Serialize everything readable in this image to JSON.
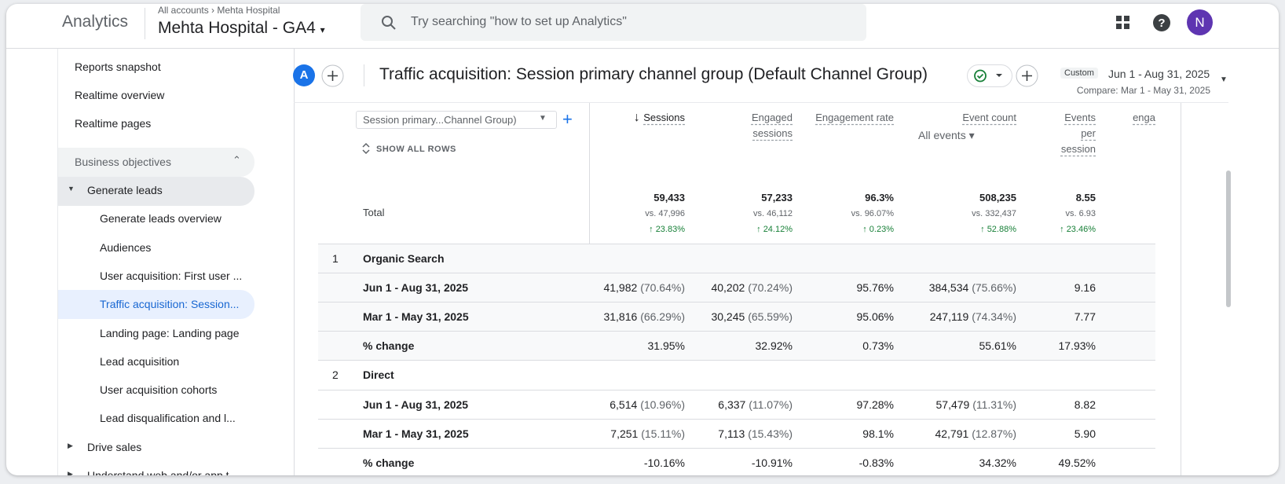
{
  "header": {
    "brand": "Analytics",
    "breadcrumb": [
      "All accounts",
      "Mehta Hospital"
    ],
    "property": "Mehta Hospital - GA4",
    "search_placeholder": "Try searching \"how to set up Analytics\"",
    "avatar": "N"
  },
  "sidebar": {
    "top": [
      "Reports snapshot",
      "Realtime overview",
      "Realtime pages"
    ],
    "section": {
      "title": "Business objectives",
      "groups": [
        {
          "label": "Generate leads",
          "items": [
            "Generate leads overview",
            "Audiences",
            "User acquisition: First user ...",
            "Traffic acquisition: Session...",
            "Landing page: Landing page",
            "Lead acquisition",
            "User acquisition cohorts",
            "Lead disqualification and l..."
          ]
        },
        {
          "label": "Drive sales"
        },
        {
          "label": "Understand web and/or app t"
        }
      ]
    }
  },
  "toolbar": {
    "comparison_badge": "A",
    "title": "Traffic acquisition: Session primary channel group (Default Channel Group)",
    "date": {
      "tag": "Custom",
      "range": "Jun 1 - Aug 31, 2025",
      "compare": "Compare: Mar 1 - May 31, 2025"
    }
  },
  "table": {
    "dimension": "Session primary...Channel Group)",
    "show_all": "SHOW ALL ROWS",
    "columns": [
      {
        "name": "Sessions"
      },
      {
        "name": "Engaged sessions"
      },
      {
        "name": "Engagement rate"
      },
      {
        "name": "Event count",
        "sub": "All events"
      },
      {
        "name": "Events per session"
      },
      {
        "name": "enga"
      }
    ],
    "total": {
      "label": "Total",
      "cells": [
        {
          "value": "59,433",
          "compare": "vs. 47,996",
          "change": "23.83%"
        },
        {
          "value": "57,233",
          "compare": "vs. 46,112",
          "change": "24.12%"
        },
        {
          "value": "96.3%",
          "compare": "vs. 96.07%",
          "change": "0.23%"
        },
        {
          "value": "508,235",
          "compare": "vs. 332,437",
          "change": "52.88%"
        },
        {
          "value": "8.55",
          "compare": "vs. 6.93",
          "change": "23.46%"
        }
      ]
    },
    "groups": [
      {
        "index": "1",
        "name": "Organic Search",
        "rows": [
          {
            "label": "Jun 1 - Aug 31, 2025",
            "cells": [
              {
                "value": "41,982",
                "share": "(70.64%)"
              },
              {
                "value": "40,202",
                "share": "(70.24%)"
              },
              {
                "value": "95.76%"
              },
              {
                "value": "384,534",
                "share": "(75.66%)"
              },
              {
                "value": "9.16"
              }
            ]
          },
          {
            "label": "Mar 1 - May 31, 2025",
            "cells": [
              {
                "value": "31,816",
                "share": "(66.29%)"
              },
              {
                "value": "30,245",
                "share": "(65.59%)"
              },
              {
                "value": "95.06%"
              },
              {
                "value": "247,119",
                "share": "(74.34%)"
              },
              {
                "value": "7.77"
              }
            ]
          },
          {
            "label": "% change",
            "cells": [
              {
                "value": "31.95%"
              },
              {
                "value": "32.92%"
              },
              {
                "value": "0.73%"
              },
              {
                "value": "55.61%"
              },
              {
                "value": "17.93%"
              }
            ]
          }
        ]
      },
      {
        "index": "2",
        "name": "Direct",
        "rows": [
          {
            "label": "Jun 1 - Aug 31, 2025",
            "cells": [
              {
                "value": "6,514",
                "share": "(10.96%)"
              },
              {
                "value": "6,337",
                "share": "(11.07%)"
              },
              {
                "value": "97.28%"
              },
              {
                "value": "57,479",
                "share": "(11.31%)"
              },
              {
                "value": "8.82"
              }
            ]
          },
          {
            "label": "Mar 1 - May 31, 2025",
            "cells": [
              {
                "value": "7,251",
                "share": "(15.11%)"
              },
              {
                "value": "7,113",
                "share": "(15.43%)"
              },
              {
                "value": "98.1%"
              },
              {
                "value": "42,791",
                "share": "(12.87%)"
              },
              {
                "value": "5.90"
              }
            ]
          },
          {
            "label": "% change",
            "cells": [
              {
                "value": "-10.16%"
              },
              {
                "value": "-10.91%"
              },
              {
                "value": "-0.83%"
              },
              {
                "value": "34.32%"
              },
              {
                "value": "49.52%"
              }
            ]
          }
        ]
      }
    ]
  }
}
